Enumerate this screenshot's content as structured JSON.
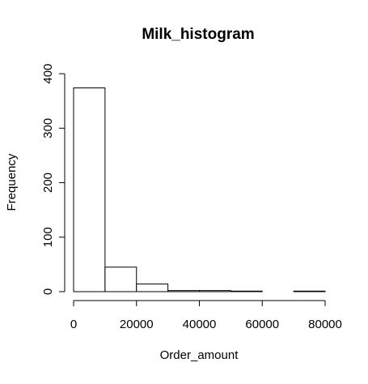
{
  "chart_data": {
    "type": "bar",
    "title": "Milk_histogram",
    "xlabel": "Order_amount",
    "ylabel": "Frequency",
    "bins": [
      {
        "start": 0,
        "end": 10000,
        "count": 374
      },
      {
        "start": 10000,
        "end": 20000,
        "count": 45
      },
      {
        "start": 20000,
        "end": 30000,
        "count": 14
      },
      {
        "start": 30000,
        "end": 40000,
        "count": 2
      },
      {
        "start": 40000,
        "end": 50000,
        "count": 2
      },
      {
        "start": 50000,
        "end": 60000,
        "count": 1
      },
      {
        "start": 60000,
        "end": 70000,
        "count": 0
      },
      {
        "start": 70000,
        "end": 80000,
        "count": 1
      }
    ],
    "xlim": [
      0,
      80000
    ],
    "ylim": [
      0,
      400
    ],
    "x_ticks": [
      0,
      20000,
      40000,
      60000,
      80000
    ],
    "x_tick_labels": [
      "0",
      "20000",
      "40000",
      "60000",
      "80000"
    ],
    "y_ticks": [
      0,
      100,
      200,
      300,
      400
    ],
    "y_tick_labels": [
      "0",
      "100",
      "200",
      "300",
      "400"
    ],
    "grid": false,
    "colors": {
      "bar_fill": "#ffffff",
      "bar_stroke": "#000000",
      "axis": "#000000"
    }
  }
}
